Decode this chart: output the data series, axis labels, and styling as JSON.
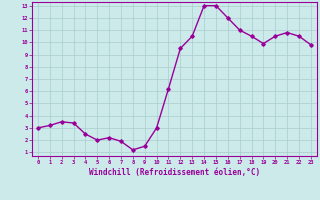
{
  "x": [
    0,
    1,
    2,
    3,
    4,
    5,
    6,
    7,
    8,
    9,
    10,
    11,
    12,
    13,
    14,
    15,
    16,
    17,
    18,
    19,
    20,
    21,
    22,
    23
  ],
  "y": [
    3.0,
    3.2,
    3.5,
    3.4,
    2.5,
    2.0,
    2.2,
    1.9,
    1.2,
    1.5,
    3.0,
    6.2,
    9.5,
    10.5,
    13.0,
    13.0,
    12.0,
    11.0,
    10.5,
    9.9,
    10.5,
    10.8,
    10.5,
    9.8
  ],
  "line_color": "#990099",
  "marker": "D",
  "marker_size": 1.8,
  "bg_color": "#cceaea",
  "grid_color": "#aacccc",
  "xlabel": "Windchill (Refroidissement éolien,°C)",
  "xlabel_color": "#990099",
  "tick_color": "#990099",
  "ylim": [
    1,
    13
  ],
  "xlim": [
    -0.5,
    23.5
  ],
  "yticks": [
    1,
    2,
    3,
    4,
    5,
    6,
    7,
    8,
    9,
    10,
    11,
    12,
    13
  ],
  "xticks": [
    0,
    1,
    2,
    3,
    4,
    5,
    6,
    7,
    8,
    9,
    10,
    11,
    12,
    13,
    14,
    15,
    16,
    17,
    18,
    19,
    20,
    21,
    22,
    23
  ],
  "line_width": 1.0
}
